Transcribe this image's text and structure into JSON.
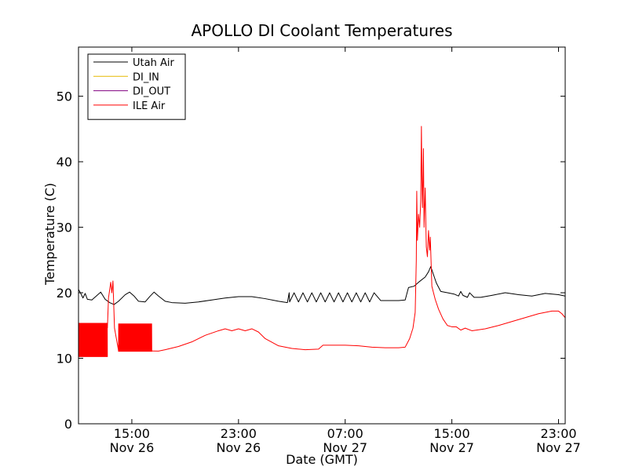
{
  "chart_data": {
    "type": "line",
    "title": "APOLLO DI Coolant Temperatures",
    "xlabel": "Date (GMT)",
    "ylabel": "Temperature (C)",
    "x_unit": "hours",
    "xlim": [
      "2012-11-26 11:00",
      "2012-11-27 23:30"
    ],
    "ylim": [
      0,
      57.5
    ],
    "yticks": [
      0,
      10,
      20,
      30,
      40,
      50
    ],
    "xticks": [
      {
        "x": "2012-11-26 15:00",
        "time": "15:00",
        "date": "Nov 26"
      },
      {
        "x": "2012-11-26 23:00",
        "time": "23:00",
        "date": "Nov 26"
      },
      {
        "x": "2012-11-27 07:00",
        "time": "07:00",
        "date": "Nov 27"
      },
      {
        "x": "2012-11-27 15:00",
        "time": "15:00",
        "date": "Nov 27"
      },
      {
        "x": "2012-11-27 23:00",
        "time": "23:00",
        "date": "Nov 27"
      }
    ],
    "grid": false,
    "legend_position": "top-left",
    "series": [
      {
        "name": "Utah Air",
        "color": "#000000",
        "points": [
          [
            "2012-11-26 11:00",
            20.5
          ],
          [
            "2012-11-26 11:10",
            19.9
          ],
          [
            "2012-11-26 11:20",
            19.2
          ],
          [
            "2012-11-26 11:30",
            19.9
          ],
          [
            "2012-11-26 11:40",
            19.0
          ],
          [
            "2012-11-26 12:00",
            18.9
          ],
          [
            "2012-11-26 12:20",
            19.5
          ],
          [
            "2012-11-26 12:40",
            20.1
          ],
          [
            "2012-11-26 13:00",
            19.0
          ],
          [
            "2012-11-26 13:20",
            18.5
          ],
          [
            "2012-11-26 13:40",
            18.2
          ],
          [
            "2012-11-26 14:00",
            18.7
          ],
          [
            "2012-11-26 14:30",
            19.7
          ],
          [
            "2012-11-26 14:50",
            20.1
          ],
          [
            "2012-11-26 15:10",
            19.5
          ],
          [
            "2012-11-26 15:30",
            18.7
          ],
          [
            "2012-11-26 16:00",
            18.6
          ],
          [
            "2012-11-26 16:20",
            19.4
          ],
          [
            "2012-11-26 16:40",
            20.1
          ],
          [
            "2012-11-26 17:00",
            19.5
          ],
          [
            "2012-11-26 17:30",
            18.7
          ],
          [
            "2012-11-26 18:00",
            18.5
          ],
          [
            "2012-11-26 19:00",
            18.4
          ],
          [
            "2012-11-26 20:00",
            18.6
          ],
          [
            "2012-11-26 21:00",
            18.9
          ],
          [
            "2012-11-26 22:00",
            19.2
          ],
          [
            "2012-11-26 23:00",
            19.4
          ],
          [
            "2012-11-27 00:00",
            19.4
          ],
          [
            "2012-11-27 01:00",
            19.1
          ],
          [
            "2012-11-27 02:00",
            18.7
          ],
          [
            "2012-11-27 02:20",
            18.6
          ],
          [
            "2012-11-27 02:40",
            18.5
          ],
          [
            "2012-11-27 02:48",
            20.0
          ],
          [
            "2012-11-27 02:50",
            18.6
          ],
          [
            "2012-11-27 03:10",
            20.0
          ],
          [
            "2012-11-27 03:30",
            18.6
          ],
          [
            "2012-11-27 03:50",
            20.0
          ],
          [
            "2012-11-27 04:10",
            18.6
          ],
          [
            "2012-11-27 04:30",
            20.0
          ],
          [
            "2012-11-27 04:50",
            18.6
          ],
          [
            "2012-11-27 05:10",
            20.0
          ],
          [
            "2012-11-27 05:30",
            18.6
          ],
          [
            "2012-11-27 05:50",
            20.0
          ],
          [
            "2012-11-27 06:10",
            18.6
          ],
          [
            "2012-11-27 06:30",
            20.0
          ],
          [
            "2012-11-27 06:50",
            18.6
          ],
          [
            "2012-11-27 07:10",
            20.0
          ],
          [
            "2012-11-27 07:30",
            18.6
          ],
          [
            "2012-11-27 07:50",
            20.0
          ],
          [
            "2012-11-27 08:10",
            18.6
          ],
          [
            "2012-11-27 08:30",
            20.0
          ],
          [
            "2012-11-27 08:50",
            18.6
          ],
          [
            "2012-11-27 09:10",
            20.0
          ],
          [
            "2012-11-27 09:40",
            18.8
          ],
          [
            "2012-11-27 11:00",
            18.8
          ],
          [
            "2012-11-27 11:30",
            18.9
          ],
          [
            "2012-11-27 11:45",
            20.8
          ],
          [
            "2012-11-27 12:10",
            21.0
          ],
          [
            "2012-11-27 12:30",
            21.6
          ],
          [
            "2012-11-27 13:00",
            22.4
          ],
          [
            "2012-11-27 13:15",
            23.2
          ],
          [
            "2012-11-27 13:25",
            24.0
          ],
          [
            "2012-11-27 13:35",
            23.0
          ],
          [
            "2012-11-27 13:50",
            21.5
          ],
          [
            "2012-11-27 14:10",
            20.2
          ],
          [
            "2012-11-27 14:40",
            20.0
          ],
          [
            "2012-11-27 15:10",
            19.8
          ],
          [
            "2012-11-27 15:30",
            19.5
          ],
          [
            "2012-11-27 15:40",
            20.2
          ],
          [
            "2012-11-27 15:50",
            19.6
          ],
          [
            "2012-11-27 16:10",
            19.3
          ],
          [
            "2012-11-27 16:20",
            20.0
          ],
          [
            "2012-11-27 16:40",
            19.3
          ],
          [
            "2012-11-27 17:10",
            19.3
          ],
          [
            "2012-11-27 18:00",
            19.6
          ],
          [
            "2012-11-27 19:00",
            20.0
          ],
          [
            "2012-11-27 20:00",
            19.7
          ],
          [
            "2012-11-27 21:00",
            19.5
          ],
          [
            "2012-11-27 22:00",
            19.9
          ],
          [
            "2012-11-27 23:00",
            19.7
          ],
          [
            "2012-11-27 23:30",
            19.5
          ]
        ]
      },
      {
        "name": "DI_IN",
        "color": "#e6b800",
        "points": []
      },
      {
        "name": "DI_OUT",
        "color": "#800080",
        "points": []
      },
      {
        "name": "ILE Air",
        "color": "#ff0000",
        "points": [
          [
            "2012-11-26 13:10",
            14.6
          ],
          [
            "2012-11-26 13:15",
            19.2
          ],
          [
            "2012-11-26 13:25",
            21.6
          ],
          [
            "2012-11-26 13:30",
            20.0
          ],
          [
            "2012-11-26 13:35",
            21.8
          ],
          [
            "2012-11-26 13:42",
            14.6
          ],
          [
            "2012-11-26 14:00",
            11.2
          ],
          [
            "2012-11-26 17:00",
            11.1
          ],
          [
            "2012-11-26 17:30",
            11.3
          ],
          [
            "2012-11-26 18:30",
            11.8
          ],
          [
            "2012-11-26 19:30",
            12.5
          ],
          [
            "2012-11-26 20:30",
            13.5
          ],
          [
            "2012-11-26 21:30",
            14.2
          ],
          [
            "2012-11-26 22:00",
            14.5
          ],
          [
            "2012-11-26 22:30",
            14.2
          ],
          [
            "2012-11-26 23:00",
            14.5
          ],
          [
            "2012-11-26 23:30",
            14.2
          ],
          [
            "2012-11-27 00:00",
            14.5
          ],
          [
            "2012-11-27 00:30",
            14.0
          ],
          [
            "2012-11-27 01:00",
            13.0
          ],
          [
            "2012-11-27 02:00",
            11.9
          ],
          [
            "2012-11-27 03:00",
            11.5
          ],
          [
            "2012-11-27 04:00",
            11.3
          ],
          [
            "2012-11-27 05:00",
            11.4
          ],
          [
            "2012-11-27 05:20",
            12.0
          ],
          [
            "2012-11-27 06:00",
            12.0
          ],
          [
            "2012-11-27 07:00",
            12.0
          ],
          [
            "2012-11-27 08:00",
            11.9
          ],
          [
            "2012-11-27 09:00",
            11.7
          ],
          [
            "2012-11-27 10:00",
            11.6
          ],
          [
            "2012-11-27 11:00",
            11.6
          ],
          [
            "2012-11-27 11:30",
            11.7
          ],
          [
            "2012-11-27 11:50",
            13.0
          ],
          [
            "2012-11-27 12:05",
            14.6
          ],
          [
            "2012-11-27 12:15",
            17.0
          ],
          [
            "2012-11-27 12:20",
            25.0
          ],
          [
            "2012-11-27 12:22",
            35.5
          ],
          [
            "2012-11-27 12:25",
            28.0
          ],
          [
            "2012-11-27 12:30",
            32.0
          ],
          [
            "2012-11-27 12:35",
            30.0
          ],
          [
            "2012-11-27 12:40",
            34.0
          ],
          [
            "2012-11-27 12:43",
            45.4
          ],
          [
            "2012-11-27 12:45",
            38.0
          ],
          [
            "2012-11-27 12:48",
            33.0
          ],
          [
            "2012-11-27 12:52",
            42.0
          ],
          [
            "2012-11-27 12:55",
            30.0
          ],
          [
            "2012-11-27 13:00",
            36.0
          ],
          [
            "2012-11-27 13:05",
            27.0
          ],
          [
            "2012-11-27 13:10",
            25.5
          ],
          [
            "2012-11-27 13:15",
            29.5
          ],
          [
            "2012-11-27 13:20",
            26.5
          ],
          [
            "2012-11-27 13:23",
            28.5
          ],
          [
            "2012-11-27 13:30",
            21.0
          ],
          [
            "2012-11-27 13:45",
            19.0
          ],
          [
            "2012-11-27 14:00",
            17.5
          ],
          [
            "2012-11-27 14:20",
            16.0
          ],
          [
            "2012-11-27 14:40",
            15.0
          ],
          [
            "2012-11-27 15:00",
            14.8
          ],
          [
            "2012-11-27 15:20",
            14.8
          ],
          [
            "2012-11-27 15:40",
            14.3
          ],
          [
            "2012-11-27 16:00",
            14.6
          ],
          [
            "2012-11-27 16:30",
            14.2
          ],
          [
            "2012-11-27 17:30",
            14.5
          ],
          [
            "2012-11-27 18:30",
            15.0
          ],
          [
            "2012-11-27 19:30",
            15.6
          ],
          [
            "2012-11-27 20:30",
            16.2
          ],
          [
            "2012-11-27 21:30",
            16.8
          ],
          [
            "2012-11-27 22:30",
            17.2
          ],
          [
            "2012-11-27 23:00",
            17.2
          ],
          [
            "2012-11-27 23:15",
            16.8
          ],
          [
            "2012-11-27 23:30",
            16.2
          ]
        ],
        "oscillating_segments": [
          {
            "x_start": "2012-11-26 11:00",
            "x_end": "2012-11-26 13:10",
            "low": 10.2,
            "high": 15.4
          },
          {
            "x_start": "2012-11-26 14:00",
            "x_end": "2012-11-26 16:30",
            "low": 11.0,
            "high": 15.3
          }
        ]
      }
    ]
  }
}
